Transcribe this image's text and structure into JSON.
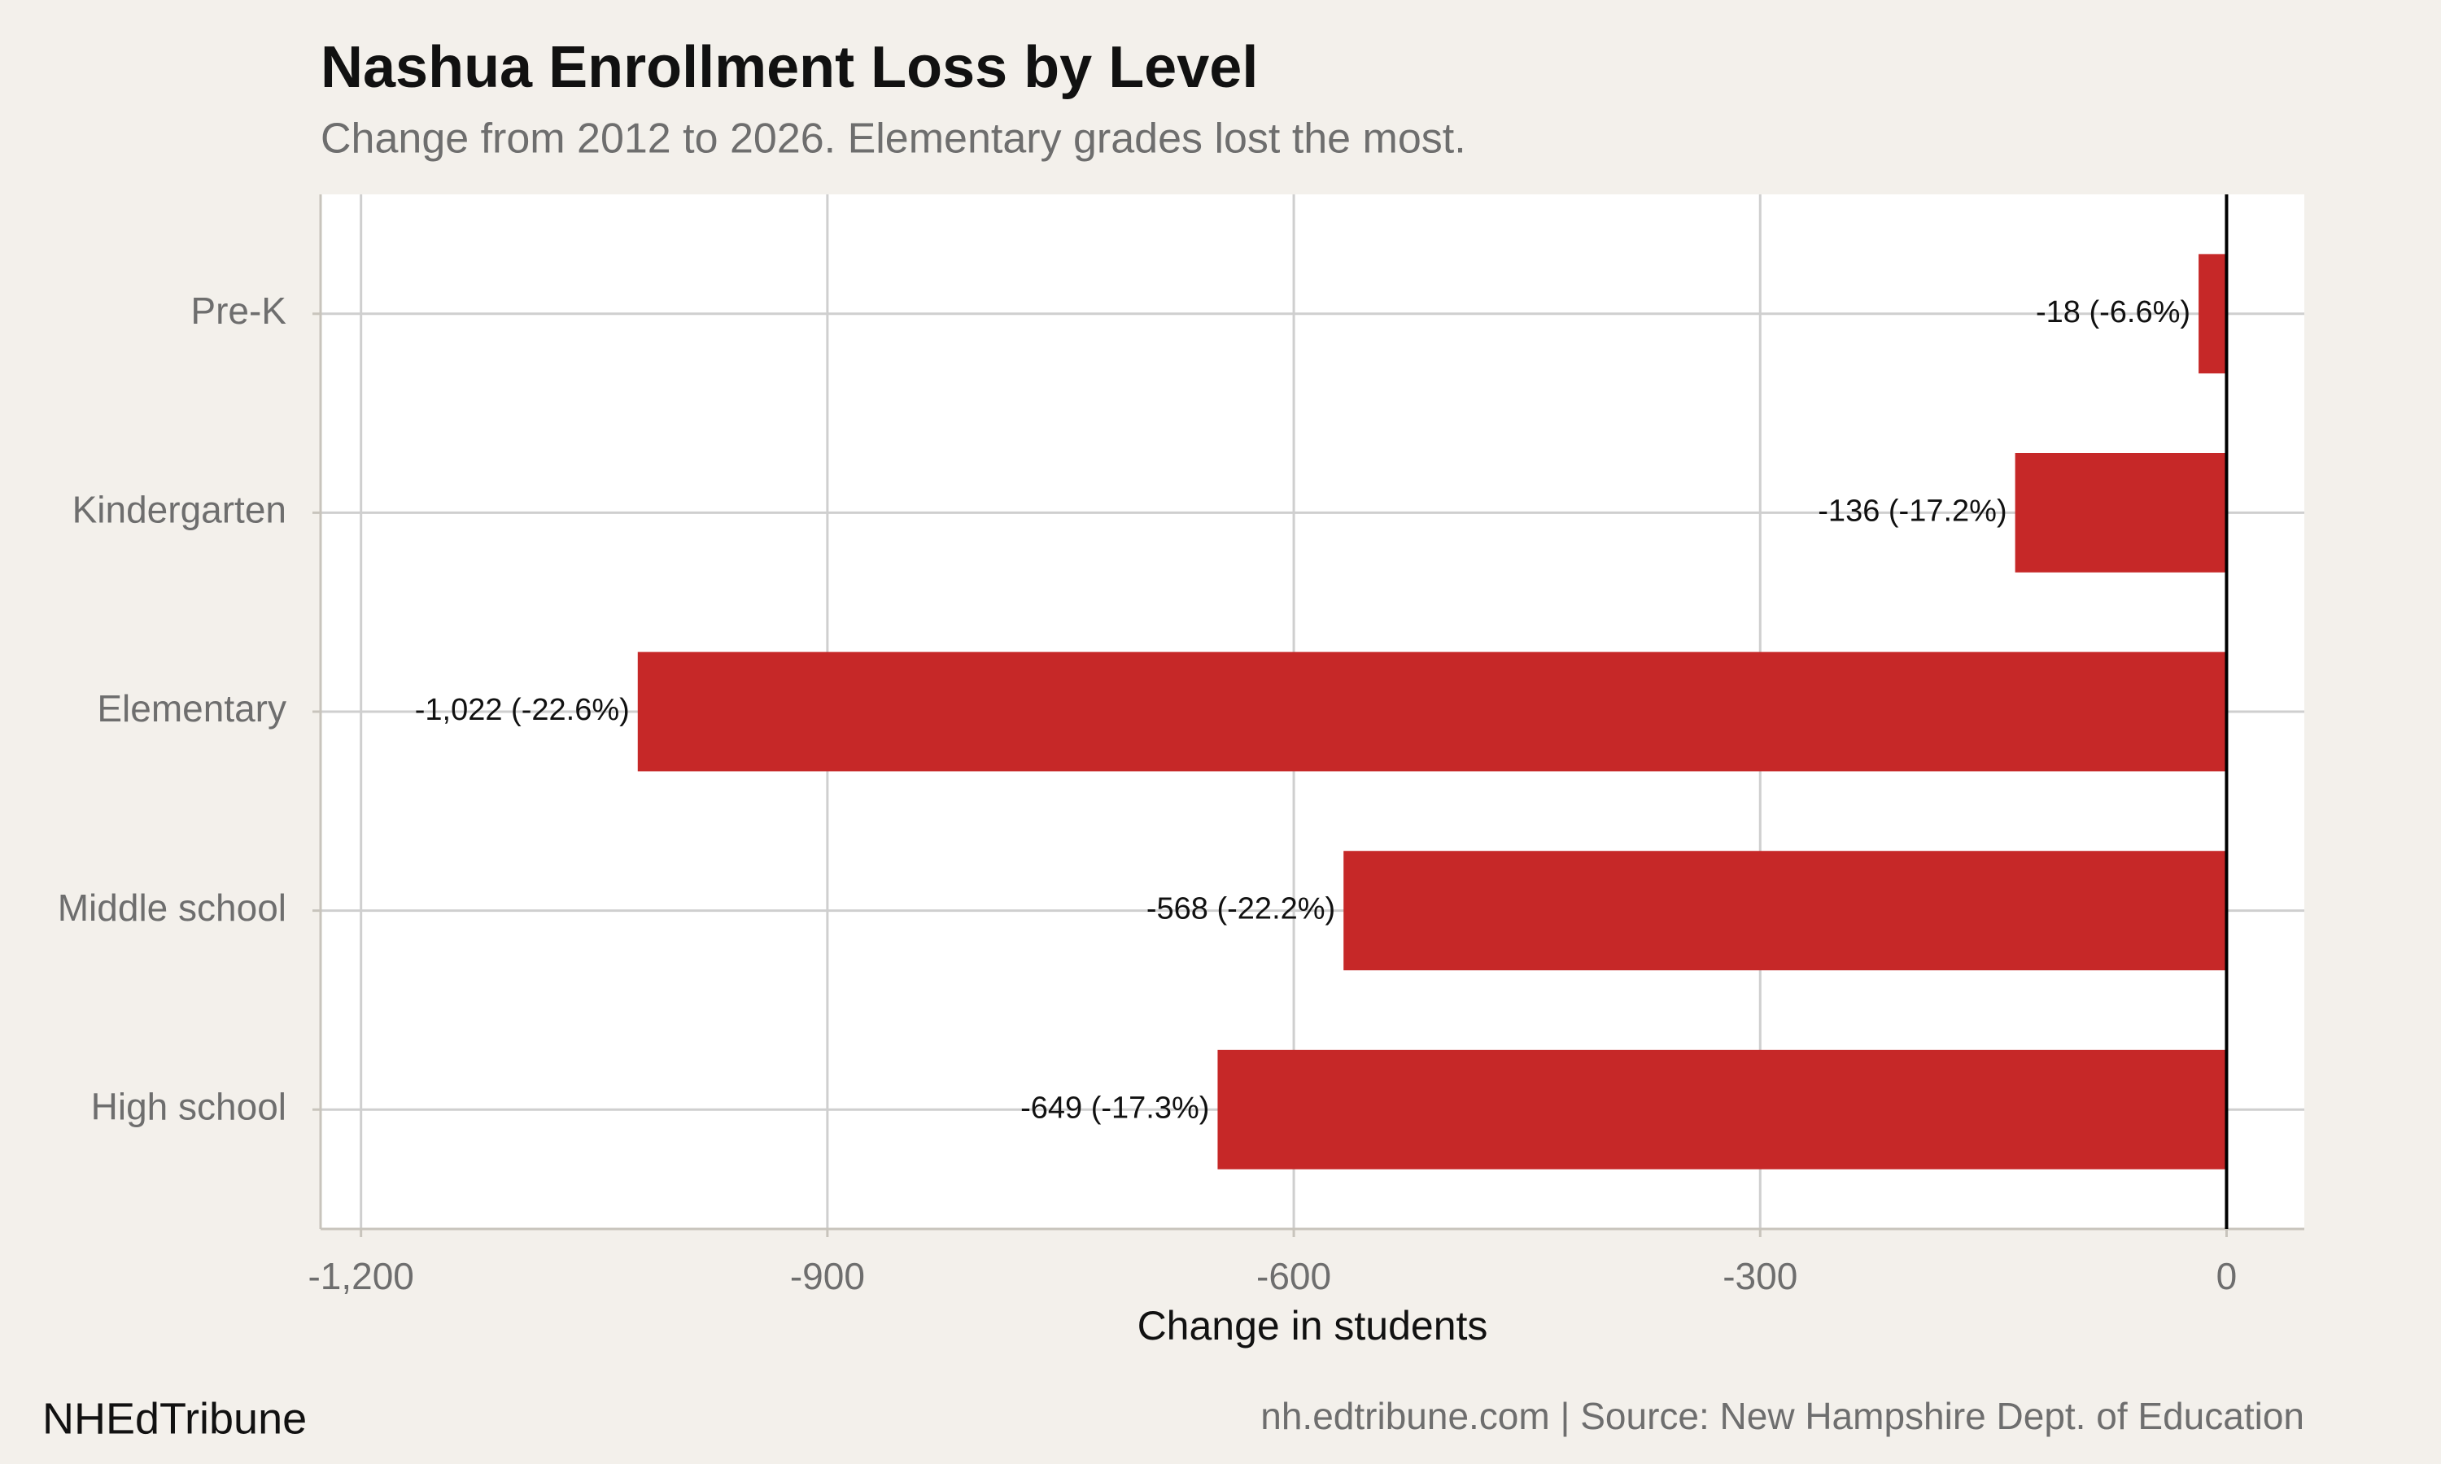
{
  "chart_data": {
    "type": "barh",
    "title": "Nashua Enrollment Loss by Level",
    "subtitle": "Change from 2012 to 2026. Elementary grades lost the most.",
    "categories": [
      "Pre-K",
      "Kindergarten",
      "Elementary",
      "Middle school",
      "High school"
    ],
    "values": [
      -18,
      -136,
      -1022,
      -568,
      -649
    ],
    "value_labels": [
      "-18 (-6.6%)",
      "-136 (-17.2%)",
      "-1,022 (-22.6%)",
      "-568 (-22.2%)",
      "-649 (-17.3%)"
    ],
    "color": "#c62828",
    "xlim": [
      -1226,
      50
    ],
    "xticks": [
      {
        "value": -1200,
        "label": "-1,200"
      },
      -900,
      -600,
      -300,
      0
    ],
    "xlabel": "Change in students",
    "grid": true,
    "brand": "NHEdTribune",
    "source": "nh.edtribune.com | Source: New Hampshire Dept. of Education"
  }
}
